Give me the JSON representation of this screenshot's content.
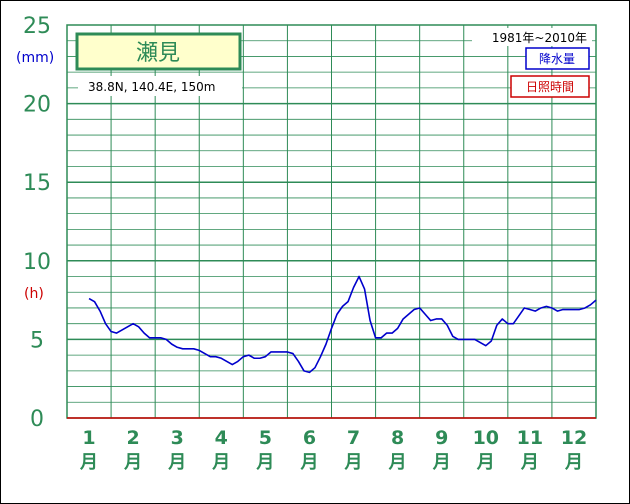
{
  "station": {
    "name": "瀬見",
    "location": "38.8N,  140.4E,  150m"
  },
  "period": "1981年~2010年",
  "legend": {
    "precipitation": "降水量",
    "sunshine": "日照時間"
  },
  "units": {
    "precipitation": "(mm)",
    "sunshine": "(h)"
  },
  "colors": {
    "grid": "#2e8b57",
    "precipitation": "#0000cc",
    "sunshine": "#cc0000",
    "title_fill": "#ffffcc"
  },
  "chart_data": {
    "type": "line",
    "ylim": [
      0,
      25
    ],
    "y_ticks": [
      "0",
      "5",
      "10",
      "15",
      "20",
      "25"
    ],
    "x_tick_labels": [
      {
        "num": "1",
        "unit": "月"
      },
      {
        "num": "2",
        "unit": "月"
      },
      {
        "num": "3",
        "unit": "月"
      },
      {
        "num": "4",
        "unit": "月"
      },
      {
        "num": "5",
        "unit": "月"
      },
      {
        "num": "6",
        "unit": "月"
      },
      {
        "num": "7",
        "unit": "月"
      },
      {
        "num": "8",
        "unit": "月"
      },
      {
        "num": "9",
        "unit": "月"
      },
      {
        "num": "10",
        "unit": "月"
      },
      {
        "num": "11",
        "unit": "月"
      },
      {
        "num": "12",
        "unit": "月"
      }
    ],
    "grid": true,
    "series": [
      {
        "name": "日照時間",
        "x_range": [
          1,
          12.5
        ],
        "y": [
          7.6,
          7.4,
          6.8,
          6.0,
          5.5,
          5.4,
          5.6,
          5.8,
          6.0,
          5.8,
          5.4,
          5.1,
          5.1,
          5.1,
          5.0,
          4.7,
          4.5,
          4.4,
          4.4,
          4.4,
          4.3,
          4.1,
          3.9,
          3.9,
          3.8,
          3.6,
          3.4,
          3.6,
          3.9,
          4.0,
          3.8,
          3.8,
          3.9,
          4.2,
          4.2,
          4.2,
          4.2,
          4.1,
          3.6,
          3.0,
          2.9,
          3.2,
          3.9,
          4.7,
          5.7,
          6.6,
          7.1,
          7.4,
          8.3,
          9.0,
          8.2,
          6.2,
          5.1,
          5.1,
          5.4,
          5.4,
          5.7,
          6.3,
          6.6,
          6.9,
          7.0,
          6.6,
          6.2,
          6.3,
          6.3,
          5.9,
          5.2,
          5.0,
          5.0,
          5.0,
          5.0,
          4.8,
          4.6,
          4.9,
          5.9,
          6.3,
          6.0,
          6.0,
          6.5,
          7.0,
          6.9,
          6.8,
          7.0,
          7.1,
          7.0,
          6.8,
          6.9,
          6.9,
          6.9,
          6.9,
          7.0,
          7.2,
          7.5
        ]
      }
    ]
  }
}
